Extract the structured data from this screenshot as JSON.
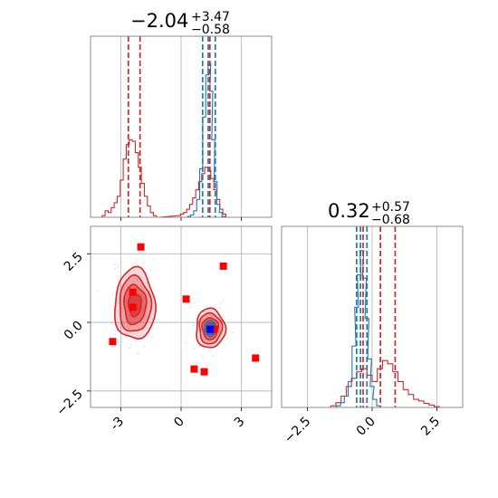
{
  "colors": {
    "primary": "#d62728",
    "secondary": "#1f77b4",
    "marker": "#ff0000",
    "truth": "#0000ff"
  },
  "chart_data": [
    {
      "type": "histogram",
      "panel": "marginal-x",
      "title_value": "−2.04",
      "title_upper": "+3.47",
      "title_lower": "−0.58",
      "xlim": [
        -4.5,
        4.5
      ],
      "xticks": [
        -3,
        0,
        3
      ],
      "grid": true,
      "lines": {
        "primary": [
          -2.62,
          -2.04,
          1.43
        ],
        "secondary": [
          1.07,
          1.35,
          1.7
        ]
      },
      "series": [
        {
          "color": "primary",
          "bins": [
            [
              -3.85,
              0.01
            ],
            [
              -3.7,
              0.04
            ],
            [
              -3.55,
              0.03
            ],
            [
              -3.4,
              0.06
            ],
            [
              -3.25,
              0.09
            ],
            [
              -3.1,
              0.13
            ],
            [
              -2.95,
              0.23
            ],
            [
              -2.8,
              0.36
            ],
            [
              -2.65,
              0.45
            ],
            [
              -2.5,
              0.48
            ],
            [
              -2.35,
              0.47
            ],
            [
              -2.2,
              0.4
            ],
            [
              -2.05,
              0.31
            ],
            [
              -1.9,
              0.21
            ],
            [
              -1.75,
              0.13
            ],
            [
              -1.6,
              0.07
            ],
            [
              -1.45,
              0.03
            ],
            [
              -1.3,
              0.01
            ],
            [
              -1.15,
              0.0
            ],
            [
              -0.1,
              0.01
            ],
            [
              0.05,
              0.02
            ],
            [
              0.2,
              0.03
            ],
            [
              0.35,
              0.05
            ],
            [
              0.5,
              0.08
            ],
            [
              0.65,
              0.12
            ],
            [
              0.8,
              0.17
            ],
            [
              0.95,
              0.22
            ],
            [
              1.1,
              0.27
            ],
            [
              1.25,
              0.31
            ],
            [
              1.4,
              0.29
            ],
            [
              1.55,
              0.24
            ],
            [
              1.7,
              0.17
            ],
            [
              1.85,
              0.11
            ],
            [
              2.0,
              0.05
            ],
            [
              2.15,
              0.02
            ],
            [
              2.3,
              0.0
            ]
          ]
        },
        {
          "color": "secondary",
          "bins": [
            [
              0.4,
              0.005
            ],
            [
              0.55,
              0.015
            ],
            [
              0.7,
              0.04
            ],
            [
              0.85,
              0.11
            ],
            [
              1.0,
              0.3
            ],
            [
              1.15,
              0.62
            ],
            [
              1.3,
              0.88
            ],
            [
              1.4,
              0.95
            ],
            [
              1.5,
              0.78
            ],
            [
              1.6,
              0.48
            ],
            [
              1.72,
              0.22
            ],
            [
              1.85,
              0.08
            ],
            [
              1.97,
              0.03
            ],
            [
              2.1,
              0.005
            ]
          ]
        }
      ]
    },
    {
      "type": "contour",
      "panel": "joint",
      "xlim": [
        -4.5,
        4.5
      ],
      "ylim": [
        -3.1,
        3.5
      ],
      "xticks": [
        -3,
        0,
        3
      ],
      "yticks": [
        2.5,
        0.0,
        -2.5
      ],
      "ytick_labels": [
        "2.5",
        "0.0",
        "−2.5"
      ],
      "grid": true,
      "blobs": [
        {
          "cx": -2.3,
          "cy": 0.65,
          "sx": 1.0,
          "sy": 1.3,
          "color": "primary"
        },
        {
          "cx": 1.45,
          "cy": -0.22,
          "sx": 0.72,
          "sy": 0.72,
          "color": "primary",
          "inner": "secondary"
        }
      ],
      "markers": [
        [
          -2.0,
          2.75
        ],
        [
          -2.4,
          1.1
        ],
        [
          -2.4,
          0.55
        ],
        [
          -3.4,
          -0.7
        ],
        [
          0.25,
          0.85
        ],
        [
          2.1,
          2.05
        ],
        [
          1.65,
          -0.25
        ],
        [
          0.65,
          -1.7
        ],
        [
          1.15,
          -1.8
        ],
        [
          3.7,
          -1.3
        ]
      ],
      "truth": [
        1.45,
        -0.25
      ]
    },
    {
      "type": "histogram",
      "panel": "marginal-y",
      "title_value": "0.32",
      "title_upper": "+0.57",
      "title_lower": "−0.68",
      "xlim": [
        -3.5,
        3.5
      ],
      "xticks": [
        -2.5,
        0.0,
        2.5
      ],
      "xtick_labels": [
        "−2.5",
        "0.0",
        "2.5"
      ],
      "grid": true,
      "lines": {
        "primary": [
          -0.35,
          0.32,
          0.89
        ],
        "secondary": [
          -0.6,
          -0.45,
          -0.2
        ]
      },
      "series": [
        {
          "color": "primary",
          "bins": [
            [
              -1.5,
              0.01
            ],
            [
              -1.3,
              0.03
            ],
            [
              -1.1,
              0.07
            ],
            [
              -0.9,
              0.13
            ],
            [
              -0.7,
              0.18
            ],
            [
              -0.5,
              0.22
            ],
            [
              -0.3,
              0.24
            ],
            [
              -0.1,
              0.2
            ],
            [
              0.1,
              0.16
            ],
            [
              0.3,
              0.24
            ],
            [
              0.5,
              0.29
            ],
            [
              0.7,
              0.27
            ],
            [
              0.9,
              0.22
            ],
            [
              1.1,
              0.16
            ],
            [
              1.3,
              0.11
            ],
            [
              1.5,
              0.08
            ],
            [
              1.7,
              0.05
            ],
            [
              1.9,
              0.04
            ],
            [
              2.1,
              0.025
            ],
            [
              2.3,
              0.015
            ],
            [
              2.5,
              0.005
            ]
          ]
        },
        {
          "color": "secondary",
          "bins": [
            [
              -1.3,
              0.01
            ],
            [
              -1.15,
              0.03
            ],
            [
              -1.0,
              0.07
            ],
            [
              -0.85,
              0.16
            ],
            [
              -0.7,
              0.38
            ],
            [
              -0.6,
              0.62
            ],
            [
              -0.5,
              0.82
            ],
            [
              -0.4,
              0.97
            ],
            [
              -0.3,
              0.8
            ],
            [
              -0.2,
              0.55
            ],
            [
              -0.1,
              0.3
            ],
            [
              0.0,
              0.13
            ],
            [
              0.1,
              0.05
            ],
            [
              0.25,
              0.01
            ]
          ]
        }
      ]
    }
  ]
}
